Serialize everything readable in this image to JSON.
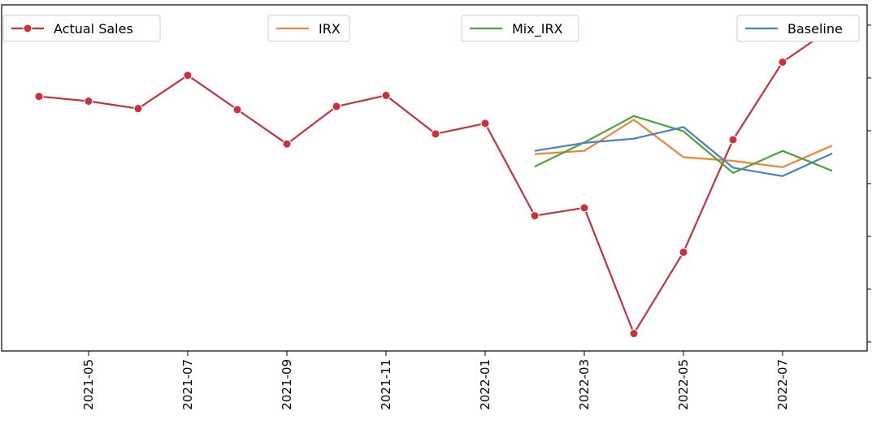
{
  "chart_data": {
    "type": "line",
    "x": [
      "2021-04",
      "2021-05",
      "2021-06",
      "2021-07",
      "2021-08",
      "2021-09",
      "2021-10",
      "2021-11",
      "2021-12",
      "2022-01",
      "2022-02",
      "2022-03",
      "2022-04",
      "2022-05",
      "2022-06",
      "2022-07",
      "2022-08"
    ],
    "x_ticks": [
      "2021-05",
      "2021-07",
      "2021-09",
      "2021-11",
      "2022-01",
      "2022-03",
      "2022-05",
      "2022-07"
    ],
    "title": "",
    "xlabel": "",
    "ylabel": "",
    "ylim": [
      0,
      6.3
    ],
    "y_tick_values": [
      0.17,
      1.17,
      2.17,
      3.17,
      4.17,
      5.17,
      6.17
    ],
    "grid": false,
    "series": [
      {
        "name": "Actual Sales",
        "color": "#c9313d",
        "marker": "circle",
        "x": [
          "2021-04",
          "2021-05",
          "2021-06",
          "2021-07",
          "2021-08",
          "2021-09",
          "2021-10",
          "2021-11",
          "2021-12",
          "2022-01",
          "2022-02",
          "2022-03",
          "2022-04",
          "2022-05",
          "2022-06",
          "2022-07",
          "2022-08"
        ],
        "values": [
          4.82,
          4.73,
          4.59,
          5.22,
          4.57,
          3.92,
          4.63,
          4.84,
          4.11,
          4.31,
          2.56,
          2.71,
          0.33,
          1.87,
          4.0,
          5.47,
          6.12
        ]
      },
      {
        "name": "IRX",
        "color": "#ee8533",
        "x": [
          "2022-02",
          "2022-03",
          "2022-04",
          "2022-05",
          "2022-06",
          "2022-07",
          "2022-08"
        ],
        "values": [
          3.73,
          3.79,
          4.38,
          3.67,
          3.6,
          3.48,
          3.89
        ]
      },
      {
        "name": "Mix_IRX",
        "color": "#4ea436",
        "x": [
          "2022-02",
          "2022-03",
          "2022-04",
          "2022-05",
          "2022-06",
          "2022-07",
          "2022-08"
        ],
        "values": [
          3.49,
          3.95,
          4.45,
          4.16,
          3.37,
          3.79,
          3.41
        ]
      },
      {
        "name": "Baseline",
        "color": "#4a7fc1",
        "x": [
          "2022-02",
          "2022-03",
          "2022-04",
          "2022-05",
          "2022-06",
          "2022-07",
          "2022-08"
        ],
        "values": [
          3.79,
          3.94,
          4.02,
          4.24,
          3.47,
          3.31,
          3.74
        ]
      }
    ],
    "legends": [
      {
        "label": "Actual Sales",
        "series": 0,
        "placement": "top-left"
      },
      {
        "label": "IRX",
        "series": 1,
        "placement": "top-center-left"
      },
      {
        "label": "Mix_IRX",
        "series": 2,
        "placement": "top-center-right"
      },
      {
        "label": "Baseline",
        "series": 3,
        "placement": "top-right"
      }
    ]
  }
}
